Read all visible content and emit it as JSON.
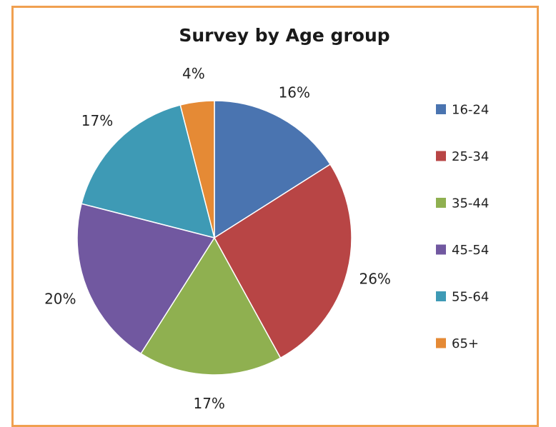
{
  "chart_data": {
    "type": "pie",
    "title": "Survey by Age group",
    "categories": [
      "16-24",
      "25-34",
      "35-44",
      "45-54",
      "55-64",
      "65+"
    ],
    "values": [
      16,
      26,
      17,
      20,
      17,
      4
    ],
    "data_labels": [
      "16%",
      "26%",
      "17%",
      "20%",
      "17%",
      "4%"
    ],
    "colors": [
      "#4a74b0",
      "#b84545",
      "#8fb050",
      "#7158a0",
      "#3e9ab5",
      "#e58a35"
    ],
    "legend_position": "right",
    "start_angle": "12 o'clock",
    "direction": "clockwise"
  },
  "frame": {
    "border_color": "#f0a050"
  }
}
